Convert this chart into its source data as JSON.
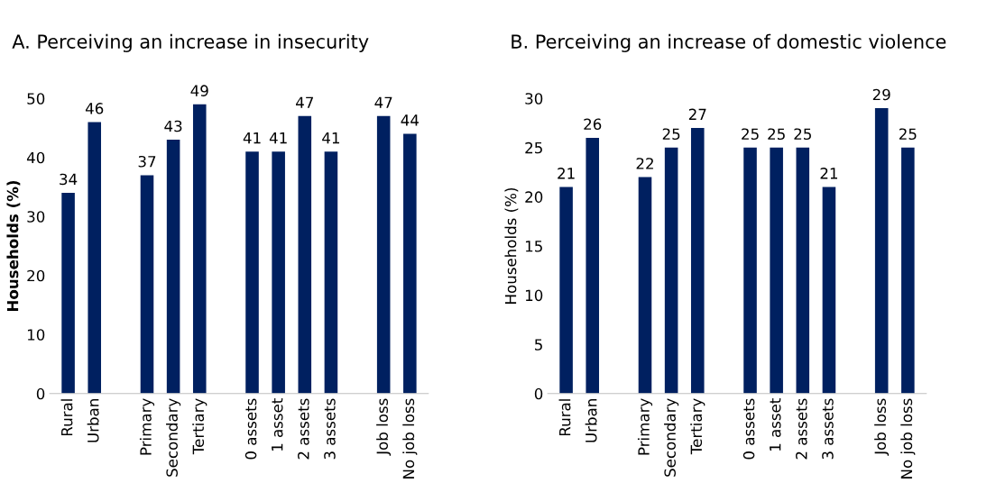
{
  "chart_data": [
    {
      "type": "bar",
      "title": "A. Perceiving an increase in insecurity",
      "ylabel": "Households (%)",
      "categories": [
        "Rural",
        "Urban",
        null,
        "Primary",
        "Secondary",
        "Tertiary",
        null,
        "0 assets",
        "1 asset",
        "2 assets",
        "3 assets",
        null,
        "Job loss",
        "No job loss"
      ],
      "values": [
        34,
        46,
        null,
        37,
        43,
        49,
        null,
        41,
        41,
        47,
        41,
        null,
        47,
        44
      ],
      "color": "#002060",
      "ylim": [
        0,
        50
      ],
      "yticks": [
        0,
        10,
        20,
        30,
        40,
        50
      ],
      "data_labels": true,
      "grid": false,
      "legend": false
    },
    {
      "type": "bar",
      "title": "B. Perceiving an increase of domestic violence",
      "ylabel": "Households (%)",
      "categories": [
        "Rural",
        "Urban",
        null,
        "Primary",
        "Secondary",
        "Tertiary",
        null,
        "0 assets",
        "1 asset",
        "2 assets",
        "3 assets",
        null,
        "Job loss",
        "No job loss"
      ],
      "values": [
        21,
        26,
        null,
        22,
        25,
        27,
        null,
        25,
        25,
        25,
        21,
        null,
        29,
        25
      ],
      "color": "#002060",
      "ylim": [
        0,
        30
      ],
      "yticks": [
        0,
        5,
        10,
        15,
        20,
        25,
        30
      ],
      "data_labels": true,
      "grid": false,
      "legend": false
    }
  ]
}
